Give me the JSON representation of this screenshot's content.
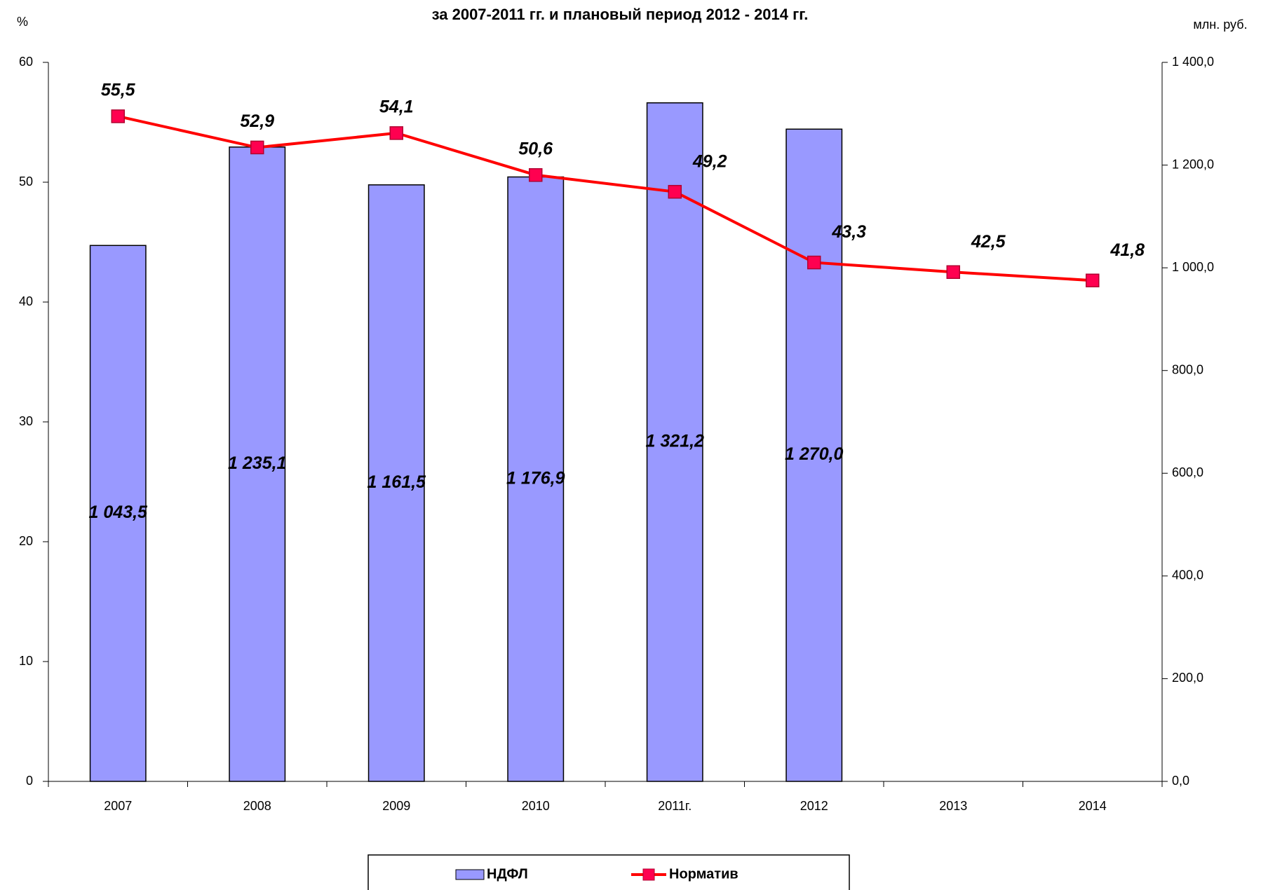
{
  "chart_data": {
    "type": "bar_line",
    "title": "за 2007-2011 гг. и плановый период 2012 - 2014 гг.",
    "y_label": "%",
    "y2_label": "млн. руб.",
    "categories": [
      "2007",
      "2008",
      "2009",
      "2010",
      "2011г.",
      "2012",
      "2013",
      "2014"
    ],
    "series": [
      {
        "name": "НДФЛ",
        "type": "bar",
        "axis": "y2",
        "color": "#9999ff",
        "values": [
          1043.5,
          1235.1,
          1161.5,
          1176.9,
          1321.2,
          1270.0,
          null,
          null
        ],
        "value_labels": [
          "1 043,5",
          "1 235,1",
          "1 161,5",
          "1 176,9",
          "1 321,2",
          "1 270,0",
          null,
          null
        ]
      },
      {
        "name": "Норматив",
        "type": "line",
        "axis": "y",
        "color": "#ff0000",
        "values": [
          55.5,
          52.9,
          54.1,
          50.6,
          49.2,
          43.3,
          42.5,
          41.8
        ],
        "value_labels": [
          "55,5",
          "52,9",
          "54,1",
          "50,6",
          "49,2",
          "43,3",
          "42,5",
          "41,8"
        ]
      }
    ],
    "ylim": [
      0,
      60
    ],
    "yticks": [
      0,
      10,
      20,
      30,
      40,
      50,
      60
    ],
    "y2lim": [
      0,
      1400
    ],
    "y2ticks": [
      {
        "value": 0,
        "label": "0,0"
      },
      {
        "value": 200,
        "label": "200,0"
      },
      {
        "value": 400,
        "label": "400,0"
      },
      {
        "value": 600,
        "label": "600,0"
      },
      {
        "value": 800,
        "label": "800,0"
      },
      {
        "value": 1000,
        "label": "1 000,0"
      },
      {
        "value": 1200,
        "label": "1 200,0"
      },
      {
        "value": 1400,
        "label": "1 400,0"
      }
    ]
  }
}
